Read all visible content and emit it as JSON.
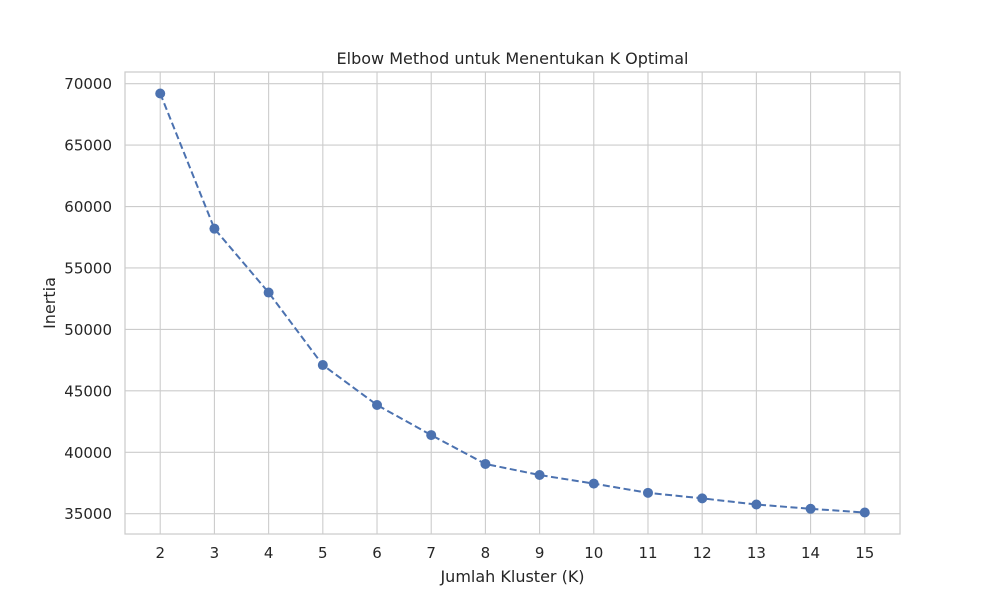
{
  "chart_data": {
    "type": "line",
    "title": "Elbow Method untuk Menentukan K Optimal",
    "xlabel": "Jumlah Kluster (K)",
    "ylabel": "Inertia",
    "x": [
      2,
      3,
      4,
      5,
      6,
      7,
      8,
      9,
      10,
      11,
      12,
      13,
      14,
      15
    ],
    "series": [
      {
        "values": [
          69200,
          58200,
          53000,
          47100,
          43850,
          41400,
          39050,
          38150,
          37450,
          36700,
          36250,
          35750,
          35400,
          35100
        ],
        "color": "#4c72b0",
        "line_style": "dashed",
        "marker": "circle"
      }
    ],
    "xlim": [
      1.35,
      15.65
    ],
    "ylim": [
      33350,
      70950
    ],
    "xticks": [
      2,
      3,
      4,
      5,
      6,
      7,
      8,
      9,
      10,
      11,
      12,
      13,
      14,
      15
    ],
    "yticks": [
      35000,
      40000,
      45000,
      50000,
      55000,
      60000,
      65000,
      70000
    ],
    "grid": true,
    "grid_color": "#cccccc",
    "frame_color": "#cccccc",
    "text_color": "#262626"
  }
}
